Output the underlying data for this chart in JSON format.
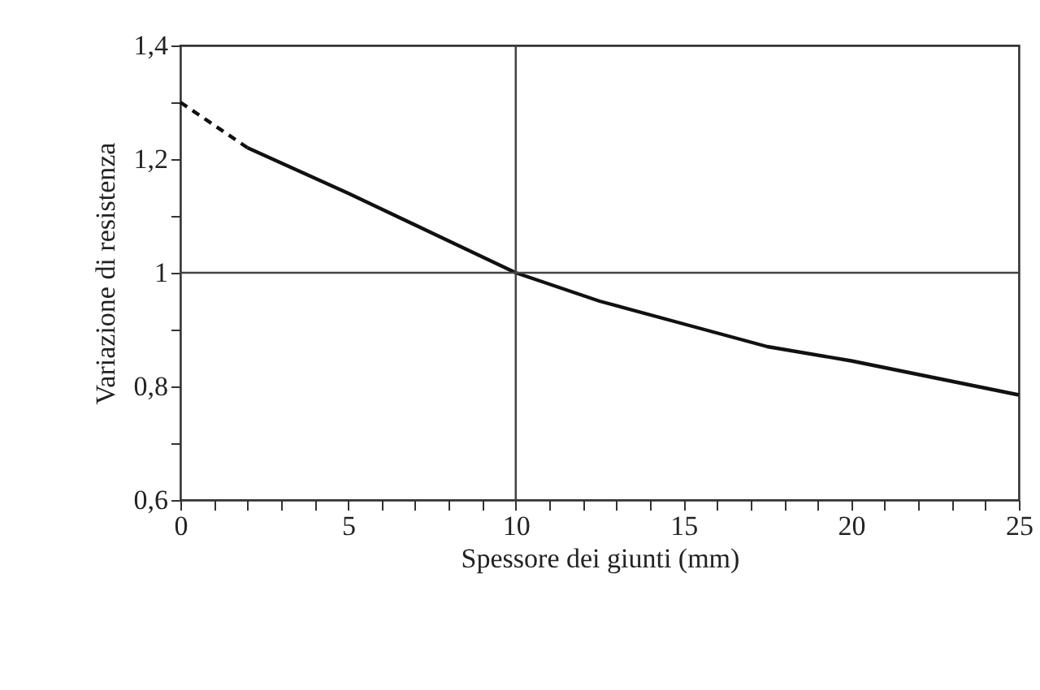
{
  "chart_data": {
    "type": "line",
    "xlabel": "Spessore dei giunti (mm)",
    "ylabel": "Variazione di resistenza",
    "xlim": [
      0,
      25
    ],
    "ylim": [
      0.6,
      1.4
    ],
    "xticks": [
      0,
      {
        "value": 1,
        "label": null
      },
      {
        "value": 2,
        "label": null
      },
      {
        "value": 3,
        "label": null
      },
      {
        "value": 4,
        "label": null
      },
      5,
      {
        "value": 6,
        "label": null
      },
      {
        "value": 7,
        "label": null
      },
      {
        "value": 8,
        "label": null
      },
      {
        "value": 9,
        "label": null
      },
      10,
      {
        "value": 11,
        "label": null
      },
      {
        "value": 12,
        "label": null
      },
      {
        "value": 13,
        "label": null
      },
      {
        "value": 14,
        "label": null
      },
      15,
      {
        "value": 16,
        "label": null
      },
      {
        "value": 17,
        "label": null
      },
      {
        "value": 18,
        "label": null
      },
      {
        "value": 19,
        "label": null
      },
      20,
      {
        "value": 21,
        "label": null
      },
      {
        "value": 22,
        "label": null
      },
      {
        "value": 23,
        "label": null
      },
      {
        "value": 24,
        "label": null
      },
      25
    ],
    "yticks": [
      {
        "value": 0.6,
        "label": "0,6"
      },
      {
        "value": 0.7,
        "label": null
      },
      {
        "value": 0.8,
        "label": "0,8"
      },
      {
        "value": 0.9,
        "label": null
      },
      1,
      {
        "value": 1.1,
        "label": null
      },
      {
        "value": 1.2,
        "label": "1,2"
      },
      {
        "value": 1.3,
        "label": null
      },
      {
        "value": 1.4,
        "label": "1,4"
      }
    ],
    "series": [
      {
        "color": "#111111",
        "line_style": "dashed",
        "x": [
          0,
          2
        ],
        "values": [
          1.3,
          1.22
        ]
      },
      {
        "color": "#111111",
        "line_style": "solid",
        "x": [
          2,
          5,
          7.5,
          10,
          12.5,
          15,
          17.5,
          20,
          22.5,
          25
        ],
        "values": [
          1.22,
          1.14,
          1.07,
          1.0,
          0.95,
          0.91,
          0.87,
          0.845,
          0.815,
          0.785
        ]
      }
    ],
    "ref_lines": [
      {
        "axis": "x",
        "value": 10,
        "color": "#444444"
      },
      {
        "axis": "y",
        "value": 1,
        "color": "#444444"
      }
    ],
    "grid": false,
    "marker": "none"
  }
}
